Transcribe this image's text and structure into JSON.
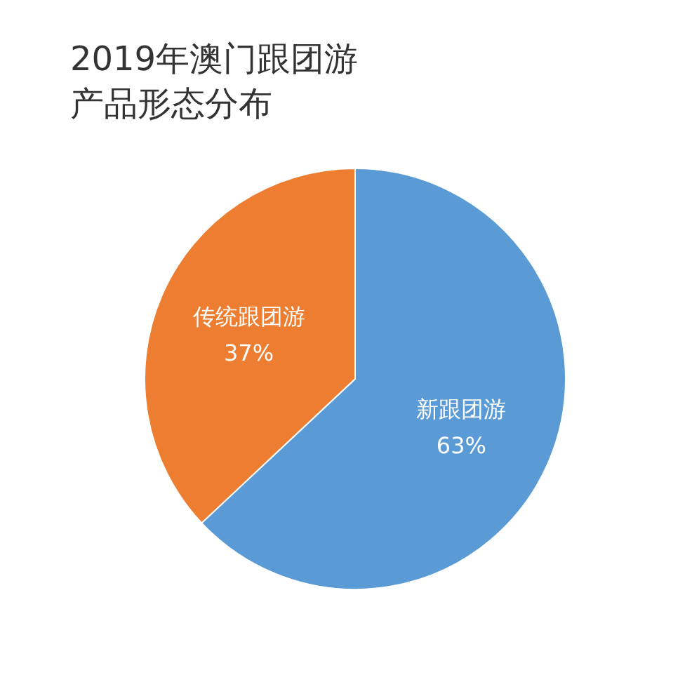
{
  "chart_data": {
    "type": "pie",
    "title": "2019年澳门跟团游产品形态分布",
    "categories": [
      "新跟团游",
      "传统跟团游"
    ],
    "values": [
      63,
      37
    ],
    "colors": [
      "#5b9bd5",
      "#ed7d31"
    ],
    "value_labels": [
      "63%",
      "37%"
    ]
  }
}
